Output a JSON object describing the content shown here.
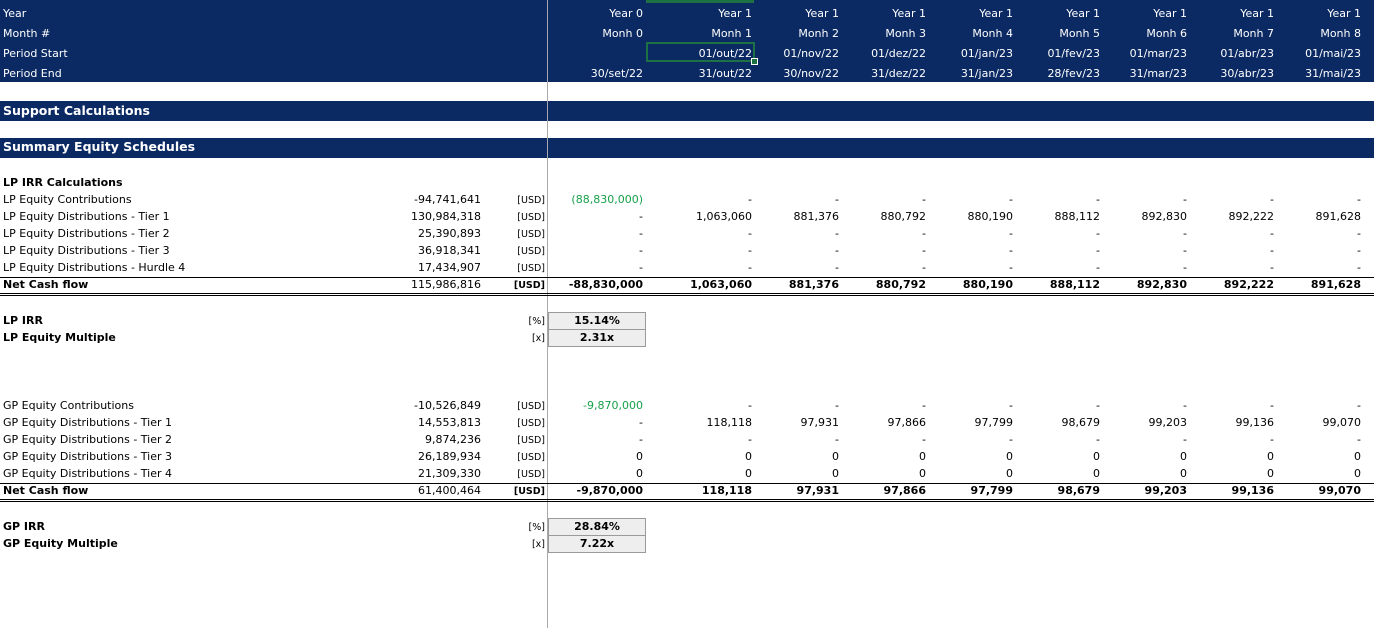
{
  "columns": [
    {
      "year": "Year 0",
      "month": "Monh 0",
      "start": "",
      "end": "30/set/22"
    },
    {
      "year": "Year 1",
      "month": "Monh 1",
      "start": "01/out/22",
      "end": "31/out/22"
    },
    {
      "year": "Year 1",
      "month": "Monh 2",
      "start": "01/nov/22",
      "end": "30/nov/22"
    },
    {
      "year": "Year 1",
      "month": "Monh 3",
      "start": "01/dez/22",
      "end": "31/dez/22"
    },
    {
      "year": "Year 1",
      "month": "Monh 4",
      "start": "01/jan/23",
      "end": "31/jan/23"
    },
    {
      "year": "Year 1",
      "month": "Monh 5",
      "start": "01/fev/23",
      "end": "28/fev/23"
    },
    {
      "year": "Year 1",
      "month": "Monh 6",
      "start": "01/mar/23",
      "end": "31/mar/23"
    },
    {
      "year": "Year 1",
      "month": "Monh 7",
      "start": "01/abr/23",
      "end": "30/abr/23"
    },
    {
      "year": "Year 1",
      "month": "Monh 8",
      "start": "01/mai/23",
      "end": "31/mai/23"
    }
  ],
  "header_labels": {
    "year": "Year",
    "month": "Month #",
    "start": "Period Start",
    "end": "Period End"
  },
  "sections": {
    "support": "Support Calculations",
    "summary": "Summary Equity Schedules"
  },
  "lp": {
    "title": "LP IRR Calculations",
    "rows": [
      {
        "label": "LP Equity Contributions",
        "total": "-94,741,641",
        "unit": "[USD]",
        "values": [
          "(88,830,000)",
          "-",
          "-",
          "-",
          "-",
          "-",
          "-",
          "-",
          "-"
        ]
      },
      {
        "label": "LP Equity Distributions - Tier 1",
        "total": "130,984,318",
        "unit": "[USD]",
        "values": [
          "-",
          "1,063,060",
          "881,376",
          "880,792",
          "880,190",
          "888,112",
          "892,830",
          "892,222",
          "891,628"
        ]
      },
      {
        "label": "LP Equity Distributions - Tier 2",
        "total": "25,390,893",
        "unit": "[USD]",
        "values": [
          "-",
          "-",
          "-",
          "-",
          "-",
          "-",
          "-",
          "-",
          "-"
        ]
      },
      {
        "label": "LP Equity Distributions - Tier 3",
        "total": "36,918,341",
        "unit": "[USD]",
        "values": [
          "-",
          "-",
          "-",
          "-",
          "-",
          "-",
          "-",
          "-",
          "-"
        ]
      },
      {
        "label": "LP Equity Distributions - Hurdle 4",
        "total": "17,434,907",
        "unit": "[USD]",
        "values": [
          "-",
          "-",
          "-",
          "-",
          "-",
          "-",
          "-",
          "-",
          "-"
        ]
      }
    ],
    "net": {
      "label": "Net Cash flow",
      "total": "115,986,816",
      "unit": "[USD]",
      "values": [
        "-88,830,000",
        "1,063,060",
        "881,376",
        "880,792",
        "880,190",
        "888,112",
        "892,830",
        "892,222",
        "891,628"
      ]
    },
    "irr": {
      "label": "LP IRR",
      "unit": "[%]",
      "value": "15.14%"
    },
    "multiple": {
      "label": "LP Equity Multiple",
      "unit": "[x]",
      "value": "2.31x"
    }
  },
  "gp": {
    "rows": [
      {
        "label": "GP Equity Contributions",
        "total": "-10,526,849",
        "unit": "[USD]",
        "values": [
          "-9,870,000",
          "-",
          "-",
          "-",
          "-",
          "-",
          "-",
          "-",
          "-"
        ]
      },
      {
        "label": "GP Equity Distributions - Tier 1",
        "total": "14,553,813",
        "unit": "[USD]",
        "values": [
          "-",
          "118,118",
          "97,931",
          "97,866",
          "97,799",
          "98,679",
          "99,203",
          "99,136",
          "99,070"
        ]
      },
      {
        "label": "GP Equity Distributions - Tier 2",
        "total": "9,874,236",
        "unit": "[USD]",
        "values": [
          "-",
          "-",
          "-",
          "-",
          "-",
          "-",
          "-",
          "-",
          "-"
        ]
      },
      {
        "label": "GP Equity Distributions - Tier 3",
        "total": "26,189,934",
        "unit": "[USD]",
        "values": [
          "0",
          "0",
          "0",
          "0",
          "0",
          "0",
          "0",
          "0",
          "0"
        ]
      },
      {
        "label": "GP Equity Distributions - Tier 4",
        "total": "21,309,330",
        "unit": "[USD]",
        "values": [
          "0",
          "0",
          "0",
          "0",
          "0",
          "0",
          "0",
          "0",
          "0"
        ]
      }
    ],
    "net": {
      "label": "Net Cash flow",
      "total": "61,400,464",
      "unit": "[USD]",
      "values": [
        "-9,870,000",
        "118,118",
        "97,931",
        "97,866",
        "97,799",
        "98,679",
        "99,203",
        "99,136",
        "99,070"
      ]
    },
    "irr": {
      "label": "GP IRR",
      "unit": "[%]",
      "value": "28.84%"
    },
    "multiple": {
      "label": "GP Equity Multiple",
      "unit": "[x]",
      "value": "7.22x"
    }
  },
  "colors": {
    "header_band": "#0b2a63",
    "contribution_text": "#19a04a",
    "selection": "#1e7145"
  }
}
